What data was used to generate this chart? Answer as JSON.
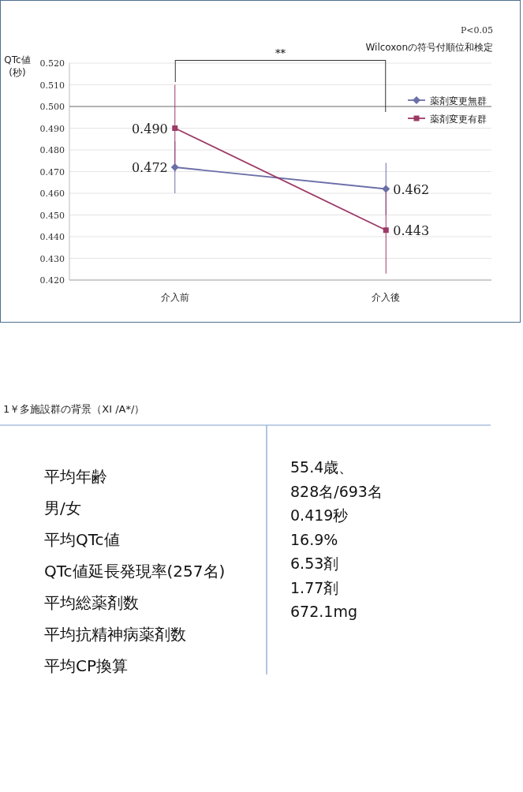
{
  "chart_data": [
    {
      "type": "line",
      "ylabel": "QTc値\n(秒)",
      "categories": [
        "介入前",
        "介入後"
      ],
      "series": [
        {
          "name": "薬剤変更無群",
          "color": "#6b6fa8",
          "values": [
            0.472,
            0.462
          ],
          "value_labels": [
            "0.472",
            "0.462"
          ],
          "errors": [
            0.012,
            0.012
          ],
          "marker": "diamond"
        },
        {
          "name": "薬剤変更有群",
          "color": "#9c3a66",
          "values": [
            0.49,
            0.443
          ],
          "value_labels": [
            "0.490",
            "0.443"
          ],
          "errors": [
            0.02,
            0.02
          ],
          "marker": "square"
        }
      ],
      "ylim": [
        0.42,
        0.52
      ],
      "yticks": [
        {
          "value": 0.42,
          "label": "0.420"
        },
        {
          "value": 0.43,
          "label": "0.430"
        },
        {
          "value": 0.44,
          "label": "0.440"
        },
        {
          "value": 0.45,
          "label": "0.450"
        },
        {
          "value": 0.46,
          "label": "0.460"
        },
        {
          "value": 0.47,
          "label": "0.470"
        },
        {
          "value": 0.48,
          "label": "0.480"
        },
        {
          "value": 0.49,
          "label": "0.490"
        },
        {
          "value": 0.5,
          "label": "0.500"
        },
        {
          "value": 0.51,
          "label": "0.510"
        },
        {
          "value": 0.52,
          "label": "0.520"
        }
      ],
      "ref_lines": [
        {
          "axis": "y",
          "value": 0.5,
          "label": null,
          "color": "#777777"
        }
      ],
      "grid": "y",
      "legend": "right",
      "annotations": [
        "**",
        "P<0.05",
        "Wilcoxonの符号付順位和検定"
      ]
    },
    {
      "type": "other",
      "title": "1￥多施設群の背景（XI /A*/）",
      "annotations": [
        "平均年齢",
        "男/女",
        "平均QTc値",
        "QTc値延長発現率(257名)",
        "平均総薬剤数",
        "平均抗精神病薬剤数",
        "平均CP換算",
        "55.4歳、",
        "828名/693名",
        "0.419秒",
        "16.9%",
        "6.53剤",
        "1.77剤",
        "672.1mg"
      ]
    }
  ]
}
